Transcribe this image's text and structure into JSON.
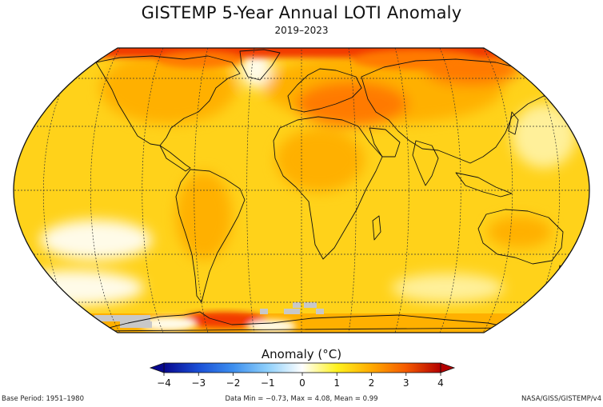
{
  "title": "GISTEMP 5-Year Annual LOTI Anomaly",
  "subtitle": "2019–2023",
  "colorbar": {
    "label": "Anomaly (°C)",
    "ticks": [
      "−4",
      "−3",
      "−2",
      "−1",
      "0",
      "1",
      "2",
      "3",
      "4"
    ],
    "tick_values": [
      -4,
      -3,
      -2,
      -1,
      0,
      1,
      2,
      3,
      4
    ],
    "colors": [
      "#08088f",
      "#1a4fd6",
      "#3d8fef",
      "#8fd0fb",
      "#ffffff",
      "#fff21e",
      "#ffaa00",
      "#f55a00",
      "#b30000"
    ]
  },
  "footer": {
    "base_period": "Base Period: 1951–1980",
    "stats": "Data Min = −0.73, Max = 4.08, Mean = 0.99",
    "source": "NASA/GISS/GISTEMP/v4"
  },
  "map_colors": {
    "base": "#ffd21a",
    "warm": "#ffb000",
    "hot": "#ff7a00",
    "very_hot": "#f23a00",
    "cool": "#fff09a",
    "white": "#fffbe8",
    "missing": "#c8c8c8",
    "land": "#ffc21a"
  }
}
